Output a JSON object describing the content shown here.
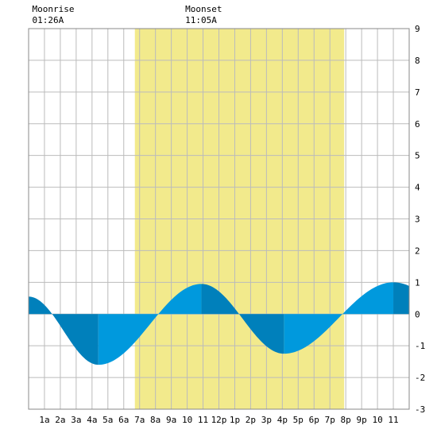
{
  "chart_data": {
    "type": "area",
    "x_tick_labels": [
      "1a",
      "2a",
      "3a",
      "4a",
      "5a",
      "6a",
      "7a",
      "8a",
      "9a",
      "10",
      "11",
      "12p",
      "1p",
      "2p",
      "3p",
      "4p",
      "5p",
      "6p",
      "7p",
      "8p",
      "9p",
      "10",
      "11"
    ],
    "y_ticks": [
      9,
      8,
      7,
      6,
      5,
      4,
      3,
      2,
      1,
      0,
      -1,
      -2,
      -3
    ],
    "ylim": [
      -3,
      9
    ],
    "xlim_hours": [
      0,
      24
    ],
    "grid": true,
    "daylight_hours": [
      6.7,
      19.9
    ],
    "moon_events": [
      {
        "label": "Moonrise",
        "time": "01:26A",
        "hour": 1.43
      },
      {
        "label": "Moonset",
        "time": "11:05A",
        "hour": 11.08
      }
    ],
    "tide_extremes": [
      {
        "hour": 0.0,
        "height": 0.55
      },
      {
        "hour": 4.4,
        "height": -1.6
      },
      {
        "hour": 10.9,
        "height": 0.95
      },
      {
        "hour": 16.1,
        "height": -1.25
      },
      {
        "hour": 23.0,
        "height": 1.0
      }
    ],
    "colors": {
      "daylight": "#f2ea8c",
      "rising": "#0099dd",
      "falling": "#0080bb",
      "grid": "#bbbbbb",
      "frame": "#888888"
    }
  }
}
